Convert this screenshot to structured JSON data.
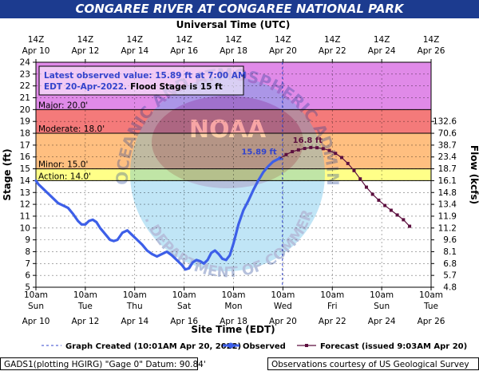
{
  "title": "CONGAREE RIVER AT CONGAREE NATIONAL PARK",
  "top_axis_title": "Universal Time (UTC)",
  "bottom_axis_title": "Site Time (EDT)",
  "left_axis_title": "Stage (ft)",
  "right_axis_title": "Flow (kcfs)",
  "info_box": {
    "line1": "Latest observed value: 15.89 ft at 7:00 AM",
    "line2_part1": "EDT 20-Apr-2022.",
    "line2_part2": "Flood Stage is 15 ft"
  },
  "labels": {
    "observed_value": "15.89 ft",
    "forecast_peak": "16.8 ft"
  },
  "legend": {
    "graph_created": "Graph Created (10:01AM Apr 20, 2022)",
    "observed": "Observed",
    "forecast": "Forecast (issued 9:03AM Apr 20)"
  },
  "footer": {
    "left": "GADS1(plotting HGIRG) \"Gage 0\" Datum:  90.84'",
    "right": "Observations courtesy of US Geological Survey"
  },
  "watermark": {
    "text_top": "NATIONAL OCEANIC AND ATMOSPHERIC ADMINISTRATION",
    "text_bottom": "U.S. DEPARTMENT OF COMMERCE",
    "center": "NOAA"
  },
  "colors": {
    "title_bg": "#1c3b8f",
    "major": "#e08ae8",
    "moderate": "#f47a7a",
    "minor": "#ffbf80",
    "action": "#ffff88",
    "normal": "#ffffff",
    "observed": "#3d5fe8",
    "forecast": "#5c0f3f",
    "info_text": "#3344cc"
  },
  "chart_data": {
    "type": "line",
    "x_unit": "days from Apr 10 10am EDT",
    "ylim": [
      5,
      24
    ],
    "xlim": [
      0,
      16
    ],
    "grid": true,
    "flood_categories": [
      {
        "name": "Major",
        "label": "Major: 20.0'",
        "from": 20,
        "to": 24
      },
      {
        "name": "Moderate",
        "label": "Moderate: 18.0'",
        "from": 18,
        "to": 20
      },
      {
        "name": "Minor",
        "label": "Minor: 15.0'",
        "from": 15,
        "to": 18
      },
      {
        "name": "Action",
        "label": "Action: 14.0'",
        "from": 14,
        "to": 15
      },
      {
        "name": "Normal",
        "label": "",
        "from": 5,
        "to": 14
      }
    ],
    "left_ticks": [
      5,
      6,
      7,
      8,
      9,
      10,
      11,
      12,
      13,
      14,
      15,
      16,
      17,
      18,
      19,
      20,
      21,
      22,
      23,
      24
    ],
    "right_ticks": [
      {
        "stage": 5,
        "label": "4.8"
      },
      {
        "stage": 6,
        "label": "5.7"
      },
      {
        "stage": 7,
        "label": "6.8"
      },
      {
        "stage": 8,
        "label": "8.1"
      },
      {
        "stage": 9,
        "label": "9.6"
      },
      {
        "stage": 10,
        "label": "11.2"
      },
      {
        "stage": 11,
        "label": "11.9"
      },
      {
        "stage": 12,
        "label": "13.4"
      },
      {
        "stage": 13,
        "label": "14.8"
      },
      {
        "stage": 14,
        "label": "16.1"
      },
      {
        "stage": 15,
        "label": "18.7"
      },
      {
        "stage": 16,
        "label": "23.4"
      },
      {
        "stage": 17,
        "label": "38.7"
      },
      {
        "stage": 18,
        "label": "70.6"
      },
      {
        "stage": 19,
        "label": "132.6"
      }
    ],
    "top_ticks": [
      {
        "x": 0,
        "l1": "14Z",
        "l2": "Apr 10"
      },
      {
        "x": 2,
        "l1": "14Z",
        "l2": "Apr 12"
      },
      {
        "x": 4,
        "l1": "14Z",
        "l2": "Apr 14"
      },
      {
        "x": 6,
        "l1": "14Z",
        "l2": "Apr 16"
      },
      {
        "x": 8,
        "l1": "14Z",
        "l2": "Apr 18"
      },
      {
        "x": 10,
        "l1": "14Z",
        "l2": "Apr 20"
      },
      {
        "x": 12,
        "l1": "14Z",
        "l2": "Apr 22"
      },
      {
        "x": 14,
        "l1": "14Z",
        "l2": "Apr 24"
      },
      {
        "x": 16,
        "l1": "14Z",
        "l2": "Apr 26"
      }
    ],
    "bottom_ticks": [
      {
        "x": 0,
        "time": "10am",
        "day": "Sun",
        "date": "Apr 10"
      },
      {
        "x": 2,
        "time": "10am",
        "day": "Tue",
        "date": "Apr 12"
      },
      {
        "x": 4,
        "time": "10am",
        "day": "Thu",
        "date": "Apr 14"
      },
      {
        "x": 6,
        "time": "10am",
        "day": "Sat",
        "date": "Apr 16"
      },
      {
        "x": 8,
        "time": "10am",
        "day": "Mon",
        "date": "Apr 18"
      },
      {
        "x": 10,
        "time": "10am",
        "day": "Wed",
        "date": "Apr 20"
      },
      {
        "x": 12,
        "time": "10am",
        "day": "Fri",
        "date": "Apr 22"
      },
      {
        "x": 14,
        "time": "10am",
        "day": "Sun",
        "date": "Apr 24"
      },
      {
        "x": 16,
        "time": "10am",
        "day": "Tue",
        "date": "Apr 26"
      }
    ],
    "graph_created_x": 9.98,
    "series": [
      {
        "name": "Observed",
        "points": [
          [
            0,
            14
          ],
          [
            0.1,
            13.7
          ],
          [
            0.3,
            13.3
          ],
          [
            0.5,
            12.9
          ],
          [
            0.7,
            12.5
          ],
          [
            0.9,
            12.1
          ],
          [
            1.1,
            11.9
          ],
          [
            1.3,
            11.7
          ],
          [
            1.5,
            11.2
          ],
          [
            1.7,
            10.6
          ],
          [
            1.85,
            10.3
          ],
          [
            2.0,
            10.3
          ],
          [
            2.15,
            10.6
          ],
          [
            2.3,
            10.7
          ],
          [
            2.45,
            10.5
          ],
          [
            2.6,
            10.0
          ],
          [
            2.8,
            9.5
          ],
          [
            3.0,
            9.0
          ],
          [
            3.15,
            8.9
          ],
          [
            3.3,
            9.0
          ],
          [
            3.5,
            9.6
          ],
          [
            3.7,
            9.8
          ],
          [
            3.9,
            9.4
          ],
          [
            4.1,
            9.0
          ],
          [
            4.3,
            8.6
          ],
          [
            4.5,
            8.1
          ],
          [
            4.7,
            7.8
          ],
          [
            4.9,
            7.6
          ],
          [
            5.1,
            7.8
          ],
          [
            5.3,
            8.0
          ],
          [
            5.5,
            7.7
          ],
          [
            5.7,
            7.3
          ],
          [
            5.9,
            6.9
          ],
          [
            6.05,
            6.5
          ],
          [
            6.2,
            6.6
          ],
          [
            6.35,
            7.1
          ],
          [
            6.5,
            7.3
          ],
          [
            6.65,
            7.2
          ],
          [
            6.8,
            7.0
          ],
          [
            6.95,
            7.3
          ],
          [
            7.1,
            7.9
          ],
          [
            7.25,
            8.1
          ],
          [
            7.4,
            7.8
          ],
          [
            7.55,
            7.4
          ],
          [
            7.7,
            7.3
          ],
          [
            7.85,
            7.7
          ],
          [
            8.0,
            8.7
          ],
          [
            8.2,
            10.3
          ],
          [
            8.4,
            11.5
          ],
          [
            8.6,
            12.3
          ],
          [
            8.8,
            13.2
          ],
          [
            9.0,
            14.0
          ],
          [
            9.2,
            14.7
          ],
          [
            9.4,
            15.2
          ],
          [
            9.6,
            15.6
          ],
          [
            9.8,
            15.82
          ],
          [
            9.88,
            15.89
          ]
        ]
      },
      {
        "name": "Forecast",
        "points": [
          [
            9.88,
            15.89
          ],
          [
            10.13,
            16.2
          ],
          [
            10.38,
            16.45
          ],
          [
            10.63,
            16.6
          ],
          [
            10.88,
            16.72
          ],
          [
            11.13,
            16.8
          ],
          [
            11.38,
            16.78
          ],
          [
            11.63,
            16.7
          ],
          [
            11.88,
            16.55
          ],
          [
            12.13,
            16.3
          ],
          [
            12.38,
            15.95
          ],
          [
            12.63,
            15.45
          ],
          [
            12.88,
            14.85
          ],
          [
            13.13,
            14.15
          ],
          [
            13.38,
            13.45
          ],
          [
            13.63,
            12.85
          ],
          [
            13.88,
            12.35
          ],
          [
            14.13,
            11.9
          ],
          [
            14.38,
            11.5
          ],
          [
            14.63,
            11.1
          ],
          [
            14.88,
            10.7
          ],
          [
            15.13,
            10.15
          ]
        ]
      }
    ]
  }
}
